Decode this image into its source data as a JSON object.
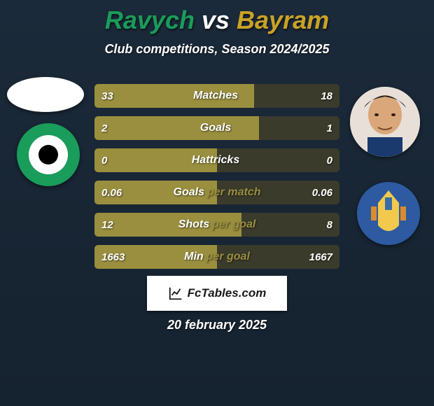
{
  "title": {
    "p1": "Ravych",
    "vs": "vs",
    "p2": "Bayram",
    "p1_color": "#1a9c5a",
    "p2_color": "#c9a227"
  },
  "subtitle": "Club competitions, Season 2024/2025",
  "stat_colors": {
    "left_bar": "#9a8f3f",
    "right_bar": "#3b3b2c",
    "row_bg": "#2e2b1a"
  },
  "stats": [
    {
      "label_l": "Matches",
      "label_r": "",
      "val_l": "33",
      "val_r": "18",
      "pct_l": 65,
      "pct_r": 35
    },
    {
      "label_l": "Goals",
      "label_r": "",
      "val_l": "2",
      "val_r": "1",
      "pct_l": 67,
      "pct_r": 33
    },
    {
      "label_l": "Hattricks",
      "label_r": "",
      "val_l": "0",
      "val_r": "0",
      "pct_l": 50,
      "pct_r": 50
    },
    {
      "label_l": "Goals",
      "label_r": "per match",
      "val_l": "0.06",
      "val_r": "0.06",
      "pct_l": 50,
      "pct_r": 50
    },
    {
      "label_l": "Shots",
      "label_r": "per goal",
      "val_l": "12",
      "val_r": "8",
      "pct_l": 60,
      "pct_r": 40
    },
    {
      "label_l": "Min",
      "label_r": "per goal",
      "val_l": "1663",
      "val_r": "1667",
      "pct_l": 50,
      "pct_r": 50
    }
  ],
  "branding": "FcTables.com",
  "date": "20 february 2025",
  "icons": {
    "player_left": "avatar-placeholder",
    "player_right": "avatar-player",
    "club_left": "club-badge-circle",
    "club_right": "club-crest"
  }
}
